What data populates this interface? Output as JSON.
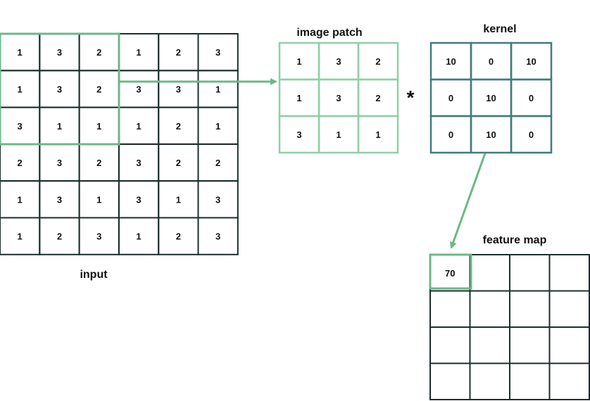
{
  "colors": {
    "input_border": "#1e2d2e",
    "patch_border": "#8fcfa8",
    "kernel_border": "#3f7e7b",
    "feature_border": "#1e2d2e",
    "highlight": "#6bb88a",
    "arrow": "#6bb88a",
    "text": "#111111"
  },
  "input": {
    "label": "input",
    "rows": [
      [
        "1",
        "3",
        "2",
        "1",
        "2",
        "3"
      ],
      [
        "1",
        "3",
        "2",
        "3",
        "3",
        "1"
      ],
      [
        "3",
        "1",
        "1",
        "1",
        "2",
        "1"
      ],
      [
        "2",
        "3",
        "2",
        "3",
        "2",
        "2"
      ],
      [
        "1",
        "3",
        "1",
        "3",
        "1",
        "3"
      ],
      [
        "1",
        "2",
        "3",
        "1",
        "2",
        "3"
      ]
    ]
  },
  "patch": {
    "label": "image patch",
    "rows": [
      [
        "1",
        "3",
        "2"
      ],
      [
        "1",
        "3",
        "2"
      ],
      [
        "3",
        "1",
        "1"
      ]
    ]
  },
  "operator": "*",
  "kernel": {
    "label": "kernel",
    "rows": [
      [
        "10",
        "0",
        "10"
      ],
      [
        "0",
        "10",
        "0"
      ],
      [
        "0",
        "10",
        "0"
      ]
    ]
  },
  "feature_map": {
    "label": "feature map",
    "rows": [
      [
        "70",
        "",
        "",
        ""
      ],
      [
        "",
        "",
        "",
        ""
      ],
      [
        "",
        "",
        "",
        ""
      ],
      [
        "",
        "",
        "",
        ""
      ]
    ]
  }
}
